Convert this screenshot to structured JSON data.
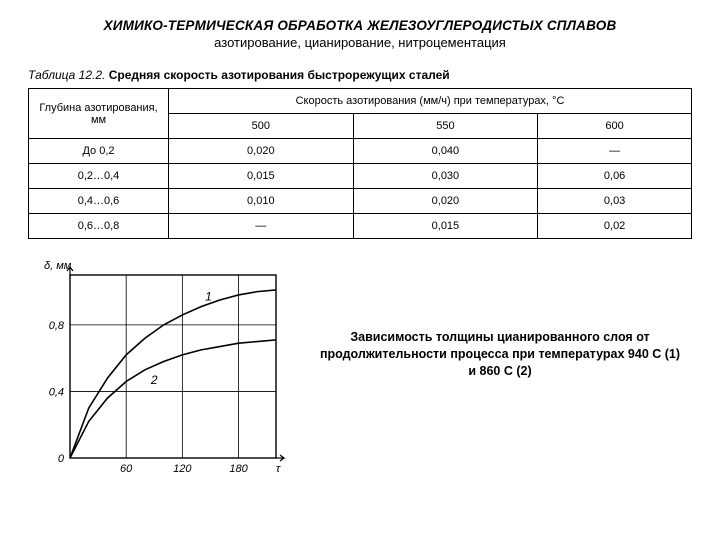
{
  "header": {
    "title": "ХИМИКО-ТЕРМИЧЕСКАЯ ОБРАБОТКА ЖЕЛЕЗОУГЛЕРОДИСТЫХ СПЛАВОВ",
    "subtitle": "азотирование, цианирование, нитроцементация"
  },
  "table": {
    "caption_prefix": "Таблица 12.2.",
    "caption_text": "Средняя скорость азотирования быстрорежущих сталей",
    "row_header": "Глубина азотирования, мм",
    "group_header": "Скорость азотирования (мм/ч) при температурах, °С",
    "col_temps": [
      "500",
      "550",
      "600"
    ],
    "rows": [
      {
        "depth": "До 0,2",
        "v500": "0,020",
        "v550": "0,040",
        "v600": "—"
      },
      {
        "depth": "0,2…0,4",
        "v500": "0,015",
        "v550": "0,030",
        "v600": "0,06"
      },
      {
        "depth": "0,4…0,6",
        "v500": "0,010",
        "v550": "0,020",
        "v600": "0,03"
      },
      {
        "depth": "0,6…0,8",
        "v500": "—",
        "v550": "0,015",
        "v600": "0,02"
      }
    ]
  },
  "chart": {
    "y_label": "δ, мм",
    "x_label": "τ",
    "x_ticks": [
      60,
      120,
      180
    ],
    "y_ticks": [
      0,
      0.4,
      0.8
    ],
    "x_range": [
      0,
      220
    ],
    "y_range": [
      0,
      1.1
    ],
    "curve1_label": "1",
    "curve2_label": "2",
    "curve1": [
      [
        0,
        0
      ],
      [
        20,
        0.3
      ],
      [
        40,
        0.48
      ],
      [
        60,
        0.62
      ],
      [
        80,
        0.72
      ],
      [
        100,
        0.8
      ],
      [
        120,
        0.86
      ],
      [
        140,
        0.91
      ],
      [
        160,
        0.95
      ],
      [
        180,
        0.98
      ],
      [
        200,
        1.0
      ],
      [
        220,
        1.01
      ]
    ],
    "curve2": [
      [
        0,
        0
      ],
      [
        20,
        0.22
      ],
      [
        40,
        0.36
      ],
      [
        60,
        0.46
      ],
      [
        80,
        0.53
      ],
      [
        100,
        0.58
      ],
      [
        120,
        0.62
      ],
      [
        140,
        0.65
      ],
      [
        160,
        0.67
      ],
      [
        180,
        0.69
      ],
      [
        200,
        0.7
      ],
      [
        220,
        0.71
      ]
    ],
    "axis_color": "#000000",
    "grid_color": "#000000",
    "line_width": 1.6,
    "description": "Зависимость толщины цианированного слоя от продолжительности процесса при температурах 940 С (1) и 860 С (2)"
  }
}
